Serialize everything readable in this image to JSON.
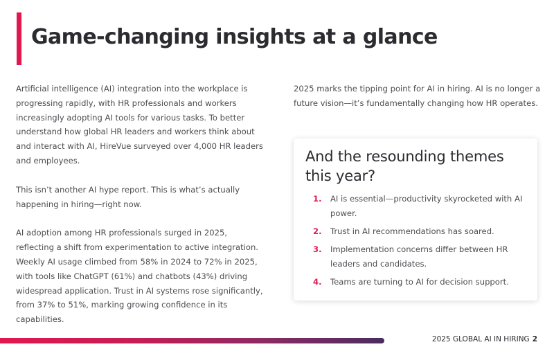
{
  "header": {
    "title": "Game-changing insights at a glance",
    "accent_color": "#e3174f"
  },
  "left_column": {
    "paragraphs": [
      "Artificial intelligence (AI) integration into the workplace is progressing rapidly, with HR professionals and workers increasingly adopting AI tools for various tasks. To better understand how global HR leaders and workers think about and interact with AI, HireVue surveyed over 4,000 HR leaders and employees.",
      "This isn’t another AI hype report. This is what’s actually happening in hiring—right now.",
      "AI adoption among HR professionals surged in 2025, reflecting a shift from experimentation to active integration. Weekly AI usage climbed from 58% in 2024 to 72% in 2025, with tools like ChatGPT (61%) and chatbots (43%) driving widespread application. Trust in AI systems rose significantly, from 37% to 51%, marking growing confidence in its capabilities."
    ]
  },
  "right_column": {
    "intro": "2025 marks the tipping point for AI in hiring. AI is no longer a future vision—it’s fundamentally changing how HR operates.",
    "card": {
      "heading": "And the resounding themes this year?",
      "items": [
        {
          "number": "1.",
          "text": "AI is essential—productivity skyrocketed with AI power."
        },
        {
          "number": "2.",
          "text": "Trust in AI recommendations has soared."
        },
        {
          "number": "3.",
          "text": "Implementation concerns differ between HR leaders and candidates."
        },
        {
          "number": "4.",
          "text": "Teams are turning to AI for decision support."
        }
      ]
    }
  },
  "footer": {
    "label": "2025 GLOBAL AI IN HIRING",
    "page_number": "2",
    "bar_gradient": [
      "#e3174f",
      "#4a2c5e"
    ]
  }
}
